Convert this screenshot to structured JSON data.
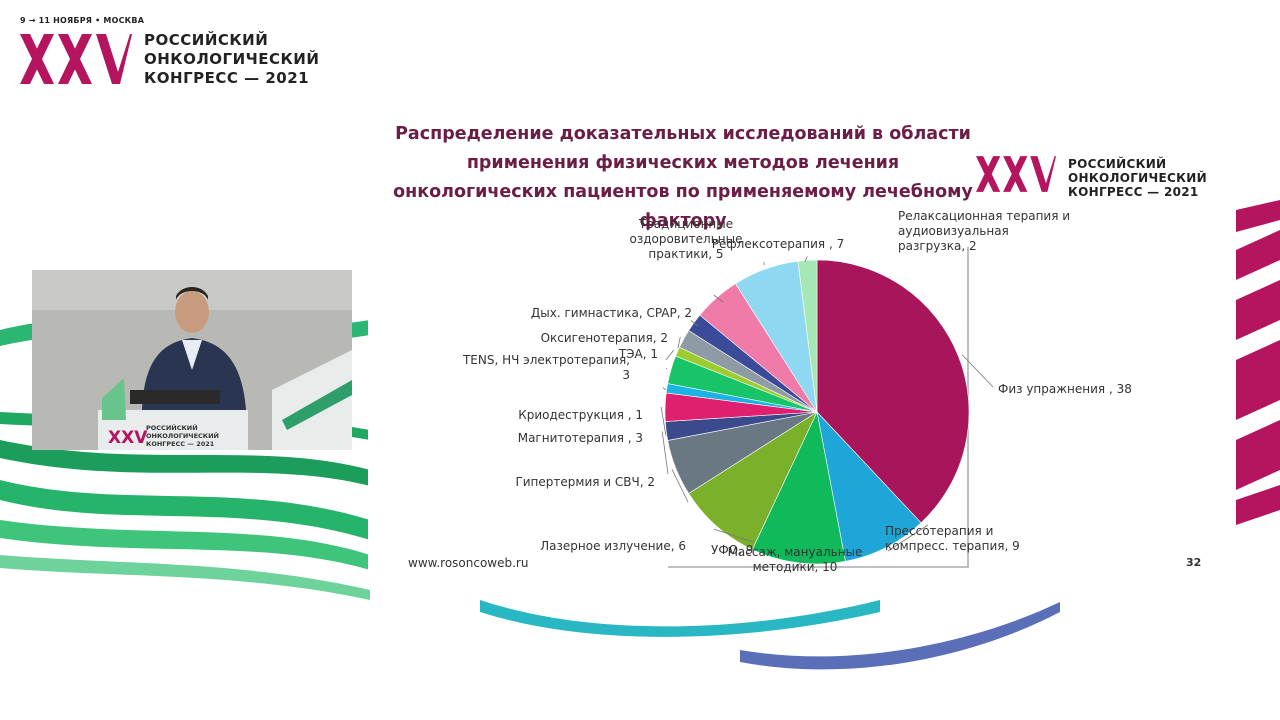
{
  "congress": {
    "dates": "9 → 11 НОЯБРЯ • МОСКВА",
    "roman": "XXV",
    "line1": "РОССИЙСКИЙ",
    "line2": "ОНКОЛОГИЧЕСКИЙ",
    "line3": "КОНГРЕСС — 2021",
    "accent": "#b5155f"
  },
  "podium": {
    "roman": "XXV",
    "line1": "РОССИЙСКИЙ",
    "line2": "ОНКОЛОГИЧЕСКИЙ",
    "line3": "КОНГРЕСС — 2021"
  },
  "slide": {
    "title_lines": [
      "Распределение доказательных исследований в области",
      "применения физических методов лечения",
      "онкологических пациентов по применяемому лечебному",
      "фактору"
    ],
    "url": "www.rosoncoweb.ru",
    "page_number": "32"
  },
  "chart_data": {
    "type": "pie",
    "title": "Распределение доказательных исследований в области применения физических методов лечения онкологических пациентов по применяемому лечебному фактору",
    "slices": [
      {
        "label": "Физ упражнения",
        "value": 38,
        "color": "#a8155a",
        "text": [
          "Физ упражнения , 38"
        ]
      },
      {
        "label": "Прессотерапия и компресс. терапия",
        "value": 9,
        "color": "#1fa6d8",
        "text": [
          "Прессотерапия и",
          "компресс. терапия, 9"
        ]
      },
      {
        "label": "Массаж, мануальные методики",
        "value": 10,
        "color": "#10b95a",
        "text": [
          "Массаж, мануальные",
          "методики, 10"
        ]
      },
      {
        "label": "УФО",
        "value": 9,
        "color": "#7bb02b",
        "text": [
          "УФО, 9"
        ]
      },
      {
        "label": "Лазерное излучение",
        "value": 6,
        "color": "#6a7884",
        "text": [
          "Лазерное излучение, 6"
        ]
      },
      {
        "label": "Гипертермия и СВЧ",
        "value": 2,
        "color": "#3a4a8c",
        "text": [
          "Гипертермия и СВЧ, 2"
        ]
      },
      {
        "label": "Магнитотерапия",
        "value": 3,
        "color": "#e0206e",
        "text": [
          "Магнитотерапия , 3"
        ]
      },
      {
        "label": "Криодеструкция",
        "value": 1,
        "color": "#1bb3e3",
        "text": [
          "Криодеструкция , 1"
        ]
      },
      {
        "label": "TENS, НЧ электротерапия",
        "value": 3,
        "color": "#17c468",
        "text": [
          "TENS, НЧ электротерапия,",
          "3"
        ]
      },
      {
        "label": "ТЭА",
        "value": 1,
        "color": "#9ccc2e",
        "text": [
          "ТЭА, 1"
        ]
      },
      {
        "label": "Оксигенотерапия",
        "value": 2,
        "color": "#8e9aa4",
        "text": [
          "Оксигенотерапия, 2"
        ]
      },
      {
        "label": "Дых. гимнастика, CPAP",
        "value": 2,
        "color": "#3b4b9a",
        "text": [
          "Дых. гимнастика, CPAP, 2"
        ]
      },
      {
        "label": "Традиционные оздоровительные практики",
        "value": 5,
        "color": "#f07aa8",
        "text": [
          "Традиционные",
          "оздоровительные",
          "практики, 5"
        ]
      },
      {
        "label": "Рефлексотерапия",
        "value": 7,
        "color": "#8fd8f2",
        "text": [
          "Рефлексотерапия , 7"
        ]
      },
      {
        "label": "Релаксационная терапия и аудиовизуальная разгрузка",
        "value": 2,
        "color": "#a6e8b5",
        "text": [
          "Релаксационная терапия и",
          "аудиовизуальная",
          "разгрузка, 2"
        ]
      }
    ],
    "legend": "none"
  }
}
